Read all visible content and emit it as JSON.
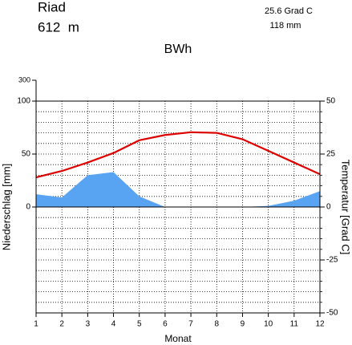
{
  "chart_data": {
    "type": "line",
    "station": "Riad",
    "elevation": "612  m",
    "annual_temperature": "25.6 Grad C",
    "annual_precipitation": "118 mm",
    "climate_class": "BWh",
    "xlabel": "Monat",
    "ylabel": "Niederschlag [mm]",
    "y2label": "Temperatur [Grad C]",
    "x": [
      1,
      2,
      3,
      4,
      5,
      6,
      7,
      8,
      9,
      10,
      11,
      12
    ],
    "xlim": [
      1,
      12
    ],
    "xticks": [
      1,
      2,
      3,
      4,
      5,
      6,
      7,
      8,
      9,
      10,
      11,
      12
    ],
    "ylim": [
      -100,
      300
    ],
    "yticks": [
      0,
      50,
      100,
      300
    ],
    "y2lim": [
      -50,
      50
    ],
    "y2ticks": [
      -50,
      -25,
      0,
      25,
      50
    ],
    "grid": true,
    "series": [
      {
        "name": "Niederschlag",
        "color": "#58a3f2",
        "kind": "area",
        "axis": "y",
        "values": [
          12,
          9,
          30,
          33,
          10,
          0,
          0,
          0,
          0,
          1,
          6,
          15
        ]
      },
      {
        "name": "Temperatur",
        "color": "#dd0000",
        "kind": "line",
        "axis": "y2",
        "values": [
          14,
          17,
          21,
          25.5,
          31.5,
          34,
          35.3,
          35,
          32,
          26.5,
          21,
          15.5
        ]
      }
    ]
  }
}
